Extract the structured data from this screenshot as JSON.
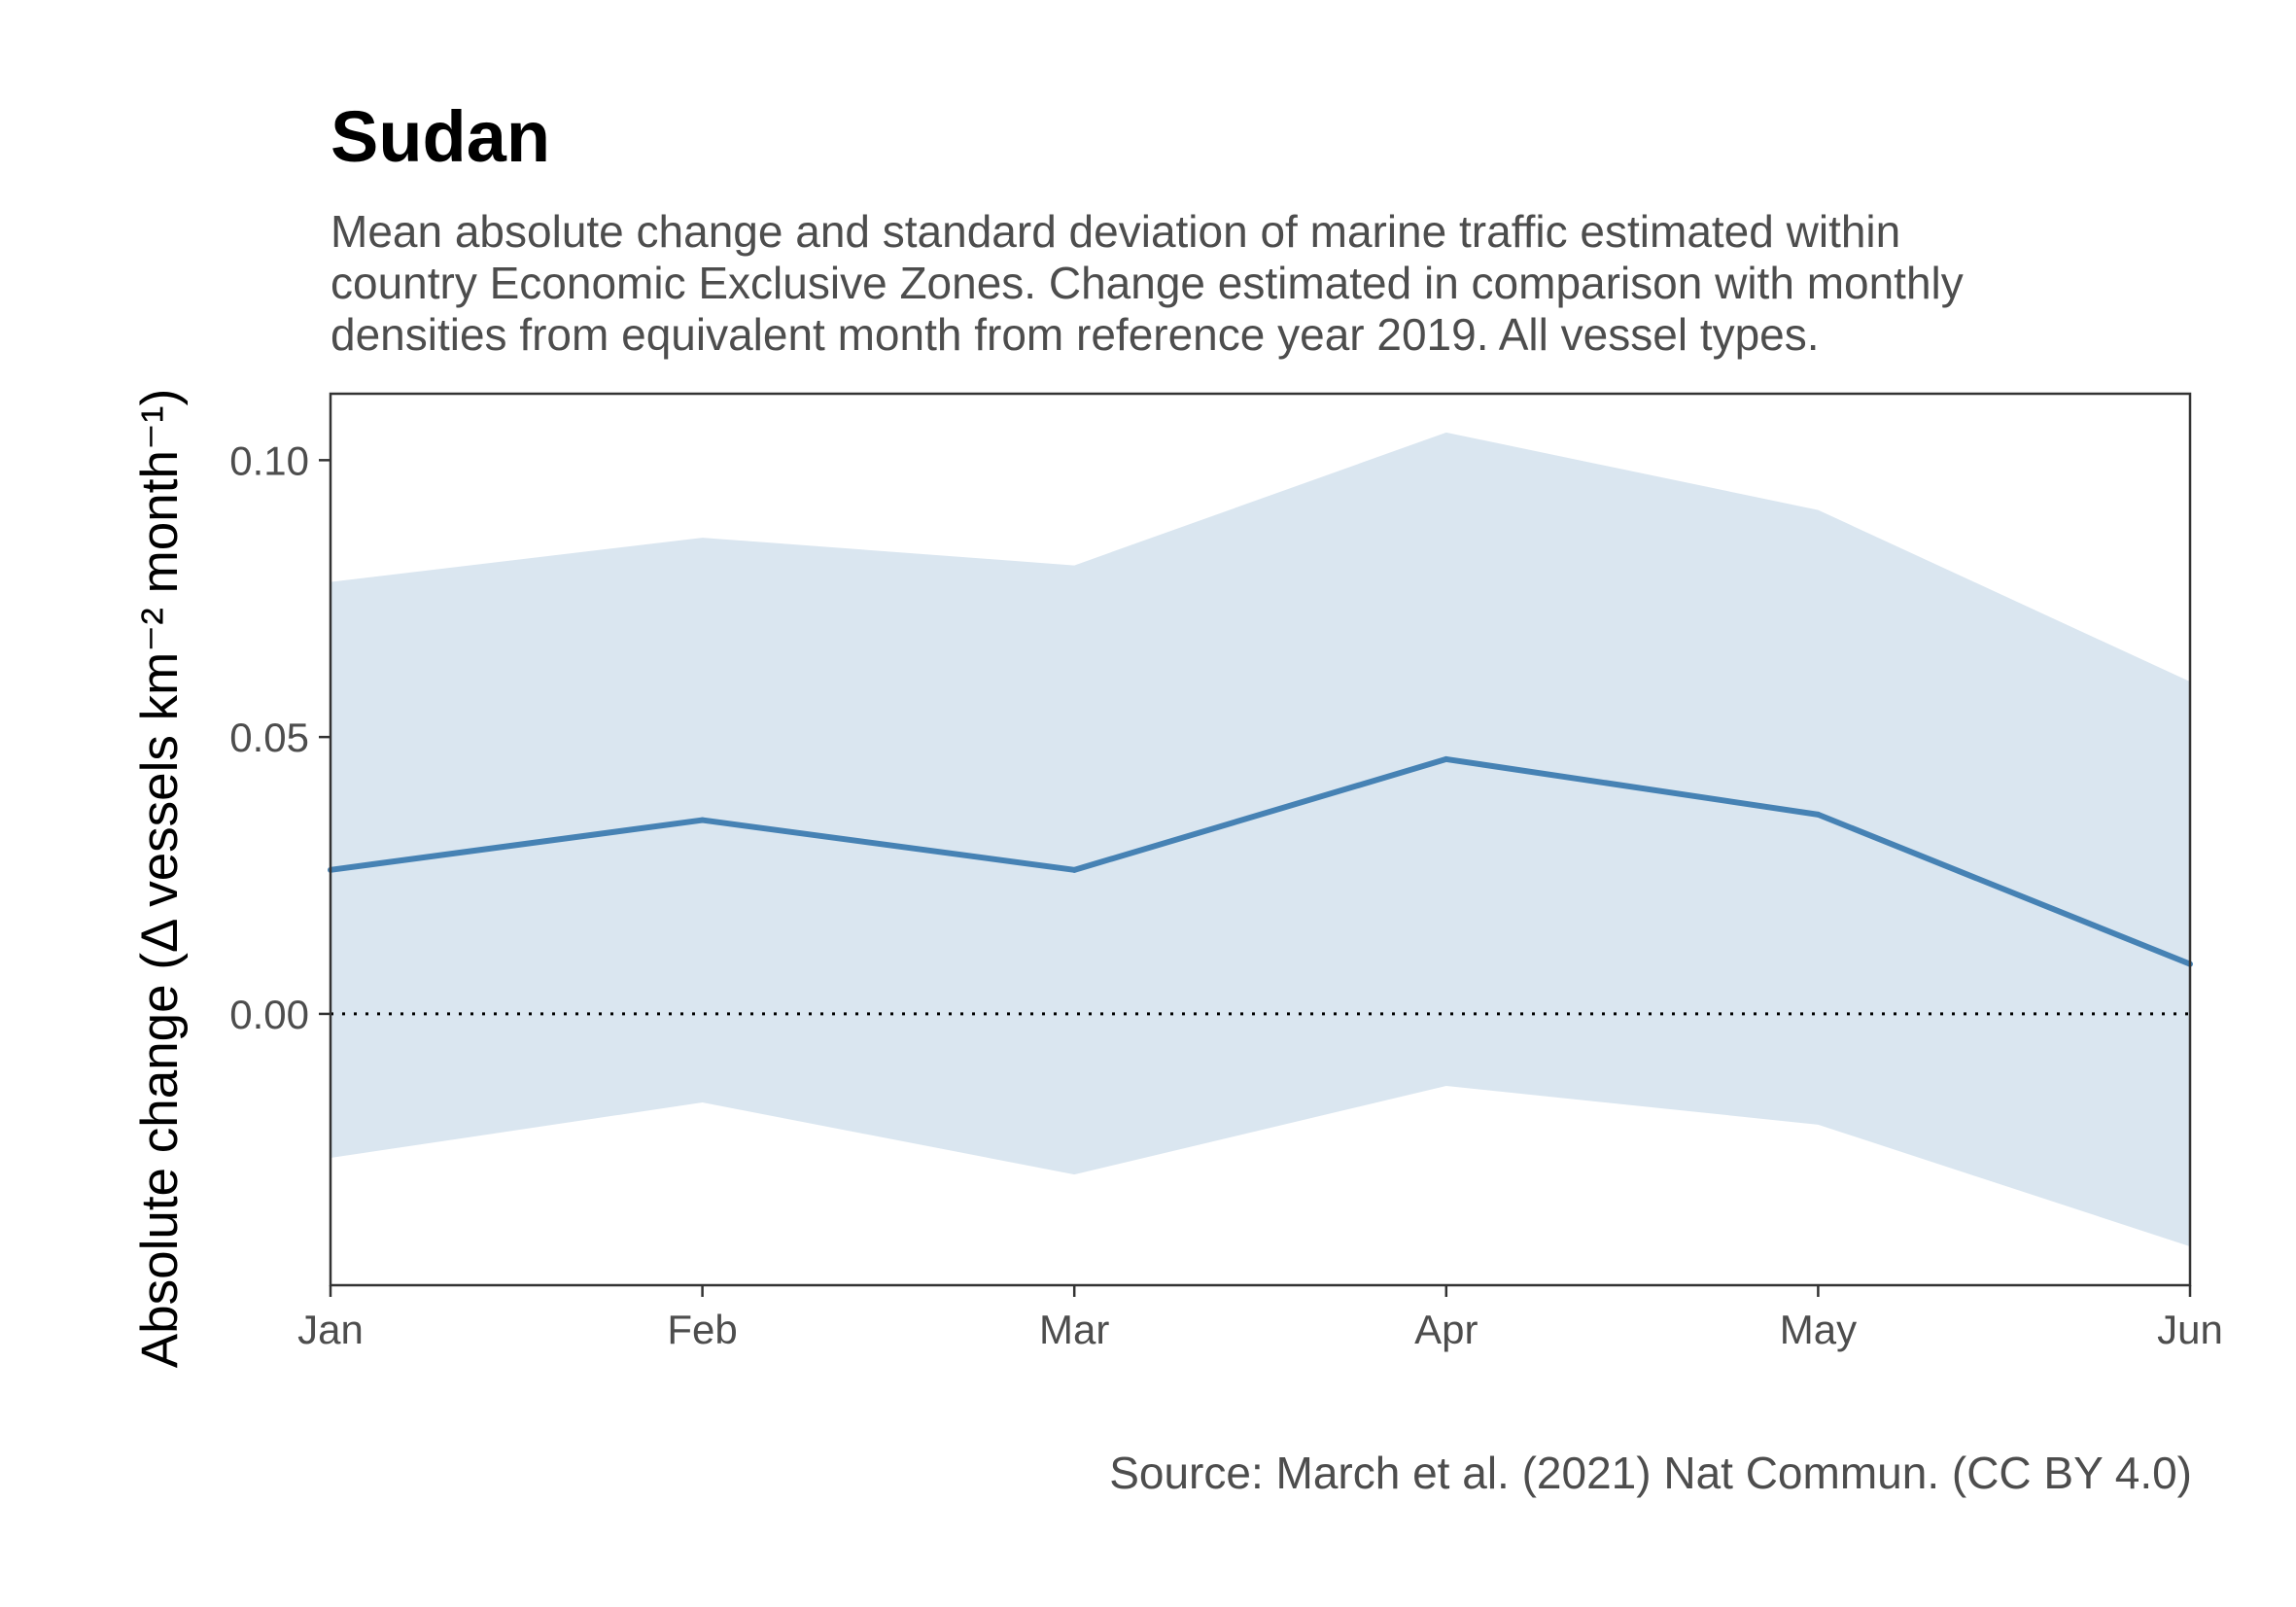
{
  "chart_data": {
    "type": "line",
    "title": "Sudan",
    "subtitle_lines": [
      "Mean absolute change and standard deviation of marine traffic estimated within",
      "country Economic Exclusive Zones. Change estimated in comparison with monthly",
      "densities from equivalent month from reference year 2019. All vessel types."
    ],
    "ylabel": "Absolute change (Δ vessels km⁻² month⁻¹)",
    "xlabel": "",
    "categories": [
      "Jan",
      "Feb",
      "Mar",
      "Apr",
      "May",
      "Jun"
    ],
    "series": [
      {
        "values": [
          0.026,
          0.035,
          0.026,
          0.046,
          0.036,
          0.009
        ],
        "lower": [
          -0.026,
          -0.016,
          -0.029,
          -0.013,
          -0.02,
          -0.042
        ],
        "upper": [
          0.078,
          0.086,
          0.081,
          0.105,
          0.091,
          0.06
        ]
      }
    ],
    "ylim": [
      -0.049,
      0.112
    ],
    "yticks": [
      "0.00",
      "0.05",
      "0.10"
    ],
    "reference_line": 0,
    "grid": false,
    "colors": {
      "line": "#4682b4",
      "ribbon": "#dae6f0",
      "reference_line": "#000000"
    }
  },
  "caption": "Source: March et al. (2021) Nat Commun. (CC BY 4.0)"
}
